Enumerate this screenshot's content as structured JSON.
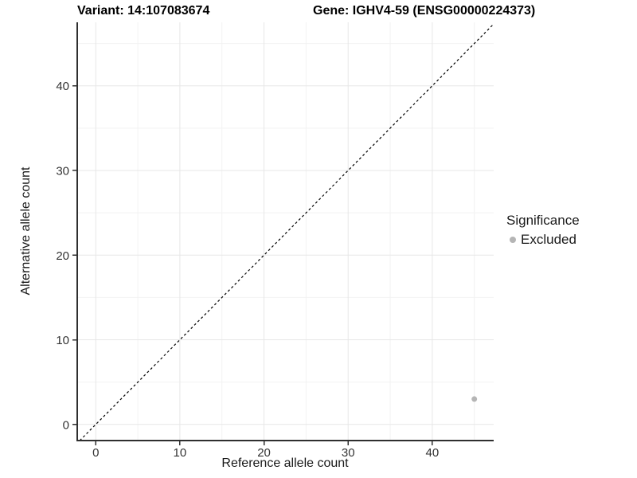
{
  "titles": {
    "variant": "Variant: 14:107083674",
    "gene": "Gene: IGHV4-59 (ENSG00000224373)"
  },
  "chart_data": {
    "type": "scatter",
    "xlabel": "Reference allele count",
    "ylabel": "Alternative allele count",
    "xlim": [
      -2.2,
      47.3
    ],
    "ylim": [
      -1.9,
      47.5
    ],
    "xticks": [
      0,
      10,
      20,
      30,
      40
    ],
    "yticks": [
      0,
      10,
      20,
      30,
      40
    ],
    "xticks_minor": [
      5,
      15,
      25,
      35,
      45
    ],
    "yticks_minor": [
      5,
      15,
      25,
      35,
      45
    ],
    "grid": "on",
    "series": [
      {
        "name": "Excluded",
        "color": "#b5b5b5",
        "points": [
          {
            "x": 45,
            "y": 3
          }
        ]
      }
    ],
    "reference_line": {
      "type": "identity-y-equals-x",
      "style": "dashed",
      "color": "#000000"
    },
    "legend": {
      "title": "Significance",
      "position": "right",
      "items": [
        {
          "label": "Excluded",
          "color": "#b5b5b5"
        }
      ]
    },
    "colors": {
      "grid_major": "#e7e7e7",
      "grid_minor": "#f2f2f2",
      "axis": "#2f2f2f",
      "tick_label": "#333333"
    }
  }
}
